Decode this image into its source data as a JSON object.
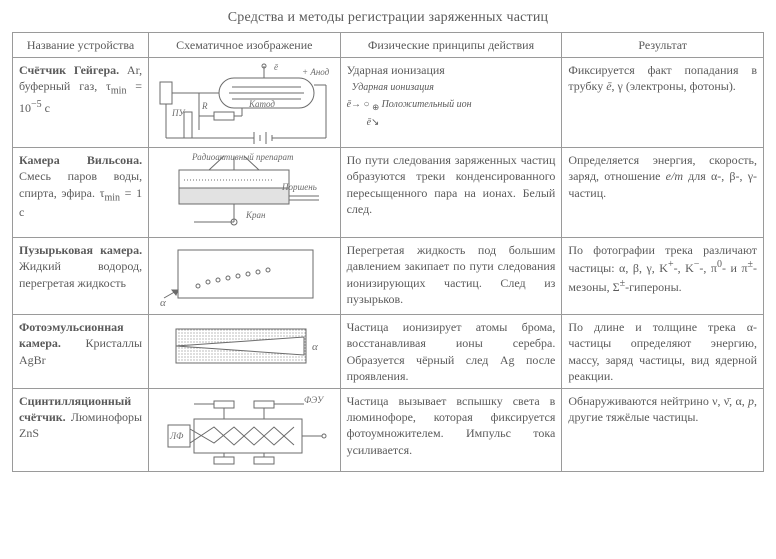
{
  "title": "Средства и методы регистрации заряженных частиц",
  "headers": {
    "name": "Название устройства",
    "schematic": "Схематичное изображение",
    "physics": "Физические принципы действия",
    "result": "Результат"
  },
  "rows": [
    {
      "device_html": "<b>Счётчик Гейгера.</b> Ar, буферный газ, τ<sub>min</sub> = 10<sup>−5</sup> с",
      "schematic": {
        "type": "geiger",
        "labels": {
          "anode": "+ Анод",
          "cathode": "Катод",
          "pu": "ПУ",
          "r": "R",
          "e": "ē"
        }
      },
      "physics_html": "Ударная ионизация<br><span class='ital' style='font-size:10px;'>&nbsp;&nbsp;Ударная ионизация</span><br><span style='font-size:10px;'><i>ē</i>→ ○ <sub>⊕</sub> <i>Положительный ион</i><br>&nbsp;&nbsp;&nbsp;&nbsp;&nbsp;&nbsp;&nbsp;&nbsp;<i>ē</i>↘</span>",
      "result_html": "Фиксируется факт попадания в трубку <i>ē</i>, γ (электроны, фотоны)."
    },
    {
      "device_html": "<b>Камера Вильсона.</b> Смесь паров воды, спирта, эфира. τ<sub>min</sub> = 1 с",
      "schematic": {
        "type": "wilson",
        "labels": {
          "prep": "Радиоактивный препарат",
          "piston": "Поршень",
          "tap": "Кран"
        }
      },
      "physics_html": "По пути следования заряженных частиц образуются треки конденсированного пересыщенного пара на ионах. Белый след.",
      "result_html": "Определяется энергия, скорость, заряд, отношение <i>e/m</i> для α-, β-, γ-частиц."
    },
    {
      "device_html": "<b>Пузырьковая камера.</b> Жидкий водород, перегретая жидкость",
      "schematic": {
        "type": "bubble",
        "labels": {
          "alpha": "α"
        }
      },
      "physics_html": "Перегретая жидкость под большим давлением закипает по пути следования ионизирующих частиц. След из пузырьков.",
      "result_html": "По фотографии трека различают частицы: α, β, γ, K<sup>+</sup>-, K<sup>−</sup>-, π<sup>0</sup>- и π<sup>±</sup>-мезоны, Σ<sup>±</sup>-гипероны."
    },
    {
      "device_html": "<b>Фотоэмульсионная камера.</b> Кристаллы AgBr",
      "schematic": {
        "type": "emulsion",
        "labels": {
          "alpha": "α"
        }
      },
      "physics_html": "Частица ионизирует атомы брома, восстанавливая ионы серебра. Образуется чёрный след Ag после проявления.",
      "result_html": "По длине и толщине трека α-частицы определяют энергию, массу, заряд частицы, вид ядерной реакции."
    },
    {
      "device_html": "<b>Сцинтилляционный счётчик.</b> Люминофоры ZnS",
      "schematic": {
        "type": "scint",
        "labels": {
          "feu": "ФЭУ",
          "lf": "ЛФ"
        }
      },
      "physics_html": "Частица вызывает вспышку света в люминофоре, которая фиксируется фотоумножителем. Импульс тока усиливается.",
      "result_html": "Обнаруживаются нейтрино ν, ν̄, α, <i>p</i>, другие тяжёлые частицы."
    }
  ],
  "style": {
    "border_color": "#9a9a9a",
    "text_color": "#5a5a5a",
    "svg_stroke": "#6b6b6b",
    "svg_fill_light": "#d8d8d8",
    "svg_fill_dots": "#bdbdbd"
  }
}
